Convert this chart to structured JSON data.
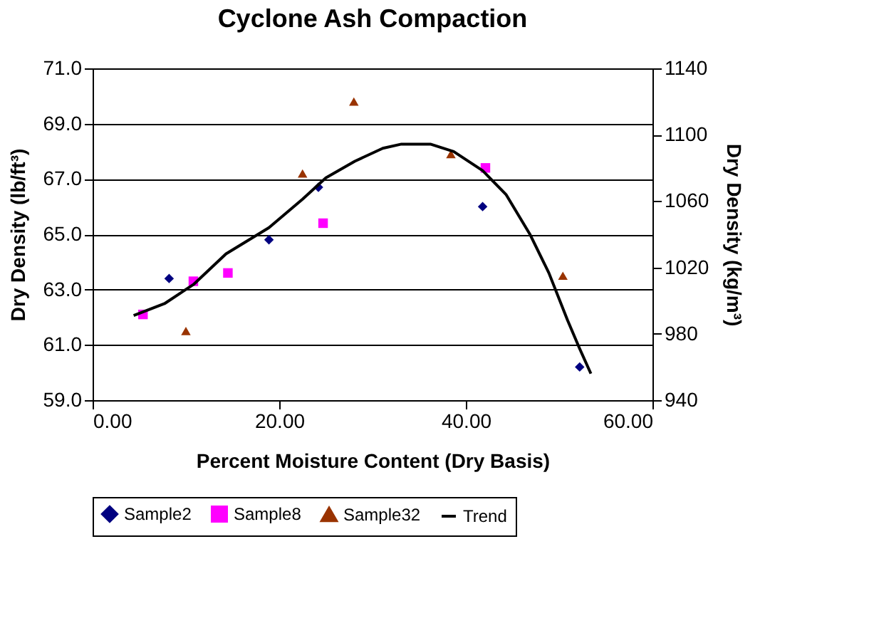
{
  "chart_data": {
    "type": "scatter",
    "title": "Cyclone Ash Compaction",
    "xlabel": "Percent Moisture Content (Dry Basis)",
    "ylabel": "Dry Density (lb/ft³)",
    "y2label": "Dry Density (kg/m³)",
    "xlim": [
      0,
      60
    ],
    "xticks": [
      {
        "value": 0,
        "label": "0.00"
      },
      {
        "value": 20,
        "label": "20.00"
      },
      {
        "value": 40,
        "label": "40.00"
      },
      {
        "value": 60,
        "label": "60.00"
      }
    ],
    "ylim": [
      59,
      71
    ],
    "yticks": [
      {
        "value": 59,
        "label": "59.0"
      },
      {
        "value": 61,
        "label": "61.0"
      },
      {
        "value": 63,
        "label": "63.0"
      },
      {
        "value": 65,
        "label": "65.0"
      },
      {
        "value": 67,
        "label": "67.0"
      },
      {
        "value": 69,
        "label": "69.0"
      },
      {
        "value": 71,
        "label": "71.0"
      }
    ],
    "y2lim": [
      940,
      1140
    ],
    "y2ticks": [
      940,
      980,
      1020,
      1060,
      1100,
      1140
    ],
    "grid": "y",
    "legend": "bottom",
    "series": [
      {
        "name": "Sample2",
        "color": "#000080",
        "marker": "diamond",
        "x": [
          8.2,
          18.9,
          24.2,
          41.8,
          52.2
        ],
        "values": [
          63.4,
          64.8,
          66.7,
          66.0,
          60.2
        ]
      },
      {
        "name": "Sample8",
        "color": "#ff00ff",
        "marker": "square",
        "x": [
          5.4,
          10.8,
          14.5,
          24.7,
          42.1
        ],
        "values": [
          62.1,
          63.3,
          63.6,
          65.4,
          67.4
        ]
      },
      {
        "name": "Sample32",
        "color": "#993300",
        "marker": "triangle",
        "x": [
          10.0,
          22.5,
          28.0,
          38.4,
          50.4
        ],
        "values": [
          61.5,
          67.2,
          69.8,
          67.9,
          63.5
        ]
      },
      {
        "name": "Trend",
        "color": "#000000",
        "type": "line",
        "marker": "none",
        "line_style": "solid",
        "x": [
          4.4,
          7.7,
          10.8,
          14.3,
          18.9,
          22.5,
          25.0,
          28.1,
          31.1,
          33.1,
          36.2,
          38.7,
          41.8,
          44.3,
          46.9,
          48.9,
          50.9,
          52.2,
          53.4
        ],
        "values": [
          62.06,
          62.49,
          63.18,
          64.29,
          65.24,
          66.27,
          67.04,
          67.64,
          68.11,
          68.26,
          68.26,
          67.99,
          67.3,
          66.44,
          64.98,
          63.6,
          61.89,
          60.86,
          59.96
        ]
      }
    ]
  }
}
